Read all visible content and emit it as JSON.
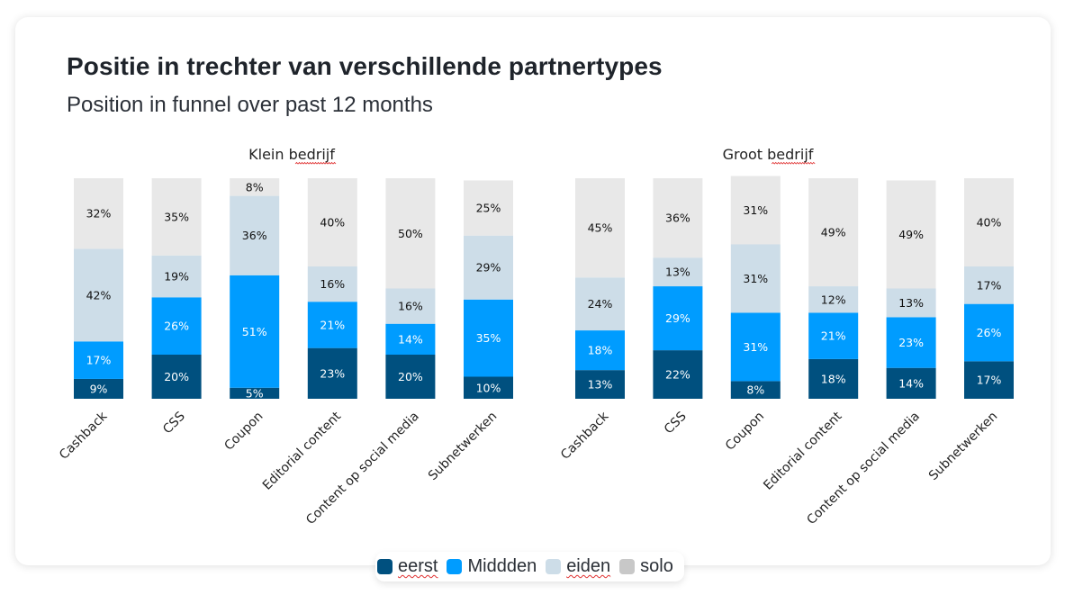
{
  "header": {
    "title": "Positie in trechter van verschillende partnertypes",
    "subtitle": "Position in funnel over past 12 months"
  },
  "legend": [
    {
      "label": "eerst",
      "color": "#00507f",
      "spellcheck": true
    },
    {
      "label": "Middden",
      "color": "#009cff",
      "spellcheck": false
    },
    {
      "label": "eiden",
      "color": "#cddde8",
      "spellcheck": true
    },
    {
      "label": "solo",
      "color": "#c8c8c8",
      "spellcheck": false
    }
  ],
  "chart_data": [
    {
      "type": "bar",
      "stacked": true,
      "title": "Klein bedrijf",
      "categories": [
        "Cashback",
        "CSS",
        "Coupon",
        "Editorial content",
        "Content op social media",
        "Subnetwerken"
      ],
      "series": [
        {
          "name": "eerst",
          "color": "#00507f",
          "label_color": "#ffffff",
          "values": [
            9,
            20,
            5,
            23,
            20,
            10
          ]
        },
        {
          "name": "Middden",
          "color": "#009cff",
          "label_color": "#ffffff",
          "values": [
            17,
            26,
            51,
            21,
            14,
            35
          ]
        },
        {
          "name": "eiden",
          "color": "#cddde8",
          "label_color": "#111111",
          "values": [
            42,
            19,
            36,
            16,
            16,
            29
          ]
        },
        {
          "name": "solo",
          "color": "#e8e8e8",
          "label_color": "#111111",
          "values": [
            32,
            35,
            8,
            40,
            50,
            25
          ]
        }
      ],
      "ylim": [
        0,
        100
      ],
      "value_suffix": "%",
      "xlabel": "",
      "ylabel": "",
      "grid": false
    },
    {
      "type": "bar",
      "stacked": true,
      "title": "Groot bedrijf",
      "categories": [
        "Cashback",
        "CSS",
        "Coupon",
        "Editorial content",
        "Content op social media",
        "Subnetwerken"
      ],
      "series": [
        {
          "name": "eerst",
          "color": "#00507f",
          "label_color": "#ffffff",
          "values": [
            13,
            22,
            8,
            18,
            14,
            17
          ]
        },
        {
          "name": "Middden",
          "color": "#009cff",
          "label_color": "#ffffff",
          "values": [
            18,
            29,
            31,
            21,
            23,
            26
          ]
        },
        {
          "name": "eiden",
          "color": "#cddde8",
          "label_color": "#111111",
          "values": [
            24,
            13,
            31,
            12,
            13,
            17
          ]
        },
        {
          "name": "solo",
          "color": "#e8e8e8",
          "label_color": "#111111",
          "values": [
            45,
            36,
            31,
            49,
            49,
            40
          ]
        }
      ],
      "ylim": [
        0,
        100
      ],
      "value_suffix": "%",
      "xlabel": "",
      "ylabel": "",
      "grid": false
    }
  ]
}
